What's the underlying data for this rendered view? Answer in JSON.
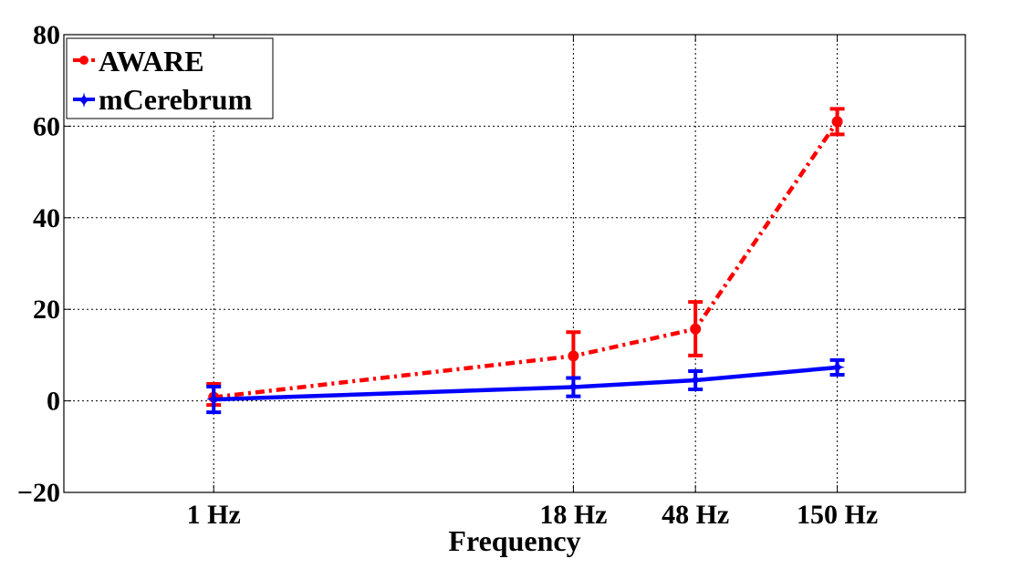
{
  "chart_data": {
    "type": "line",
    "xlabel": "Frequency",
    "ylabel": "",
    "ylim": [
      -20,
      80
    ],
    "yticks": [
      -20,
      0,
      20,
      40,
      60,
      80
    ],
    "ytick_labels": [
      "−20",
      "0",
      "20",
      "40",
      "60",
      "80"
    ],
    "categories": [
      "1 Hz",
      "18 Hz",
      "48 Hz",
      "150 Hz"
    ],
    "x": [
      1,
      18,
      48,
      150
    ],
    "xscale": "log",
    "grid": true,
    "legend_position": "top-left",
    "series": [
      {
        "name": "AWARE",
        "color": "#ff0000",
        "line_style": "dash-dot",
        "marker": "circle",
        "values": [
          0.8,
          9.8,
          15.7,
          61.0
        ],
        "err_low": [
          1.7,
          4.8,
          5.8,
          2.8
        ],
        "err_high": [
          2.9,
          5.2,
          5.9,
          2.8
        ]
      },
      {
        "name": "mCerebrum",
        "color": "#0000ff",
        "line_style": "solid",
        "marker": "star",
        "values": [
          0.3,
          3.0,
          4.5,
          7.3
        ],
        "err_low": [
          2.8,
          2.0,
          2.0,
          1.6
        ],
        "err_high": [
          2.8,
          2.0,
          2.0,
          1.6
        ]
      }
    ]
  }
}
